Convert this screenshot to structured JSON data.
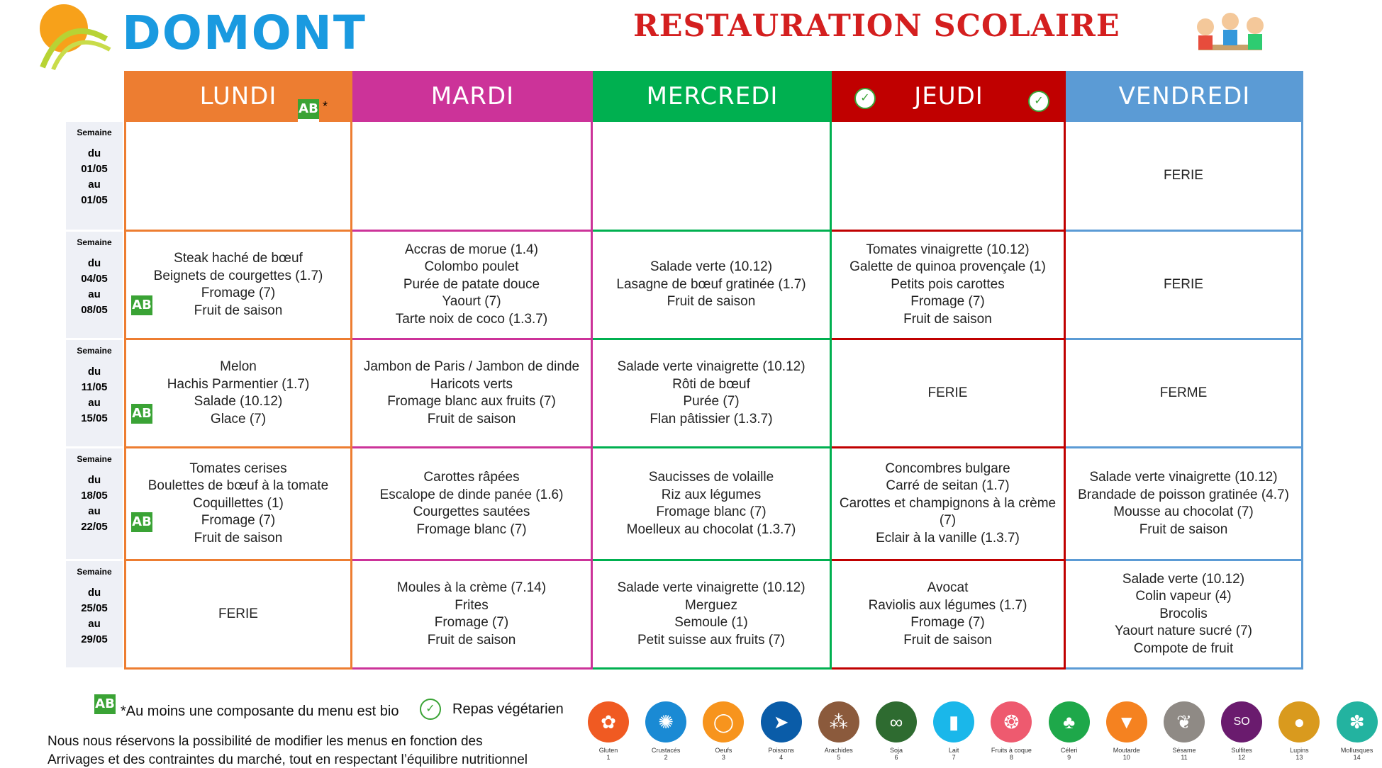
{
  "header": {
    "logo_text": "DOMONT",
    "title": "RESTAURATION SCOLAIRE"
  },
  "days": [
    {
      "label": "LUNDI",
      "color": "#ed7d31"
    },
    {
      "label": "MARDI",
      "color": "#cc3399"
    },
    {
      "label": "MERCREDI",
      "color": "#00b050"
    },
    {
      "label": "JEUDI",
      "color": "#c00000"
    },
    {
      "label": "VENDREDI",
      "color": "#5b9bd5"
    }
  ],
  "weeks": [
    {
      "semaine": "Semaine",
      "du": "du",
      "from": "01/05",
      "au": "au",
      "to": "01/05",
      "menus": [
        [],
        [],
        [],
        [],
        [
          "FERIE"
        ]
      ]
    },
    {
      "semaine": "Semaine",
      "du": "du",
      "from": "04/05",
      "au": "au",
      "to": "08/05",
      "menus": [
        [
          "Steak haché de bœuf",
          "Beignets de courgettes (1.7)",
          "Fromage (7)",
          "Fruit de saison"
        ],
        [
          "Accras de morue (1.4)",
          "Colombo poulet",
          "Purée de patate douce",
          "Yaourt (7)",
          "Tarte noix de coco (1.3.7)"
        ],
        [
          "Salade verte (10.12)",
          "Lasagne de bœuf gratinée (1.7)",
          "Fruit de saison"
        ],
        [
          "Tomates vinaigrette (10.12)",
          "Galette de quinoa provençale (1)",
          "Petits pois carottes",
          "Fromage (7)",
          "Fruit de saison"
        ],
        [
          "FERIE"
        ]
      ]
    },
    {
      "semaine": "Semaine",
      "du": "du",
      "from": "11/05",
      "au": "au",
      "to": "15/05",
      "menus": [
        [
          "Melon",
          "Hachis Parmentier (1.7)",
          "Salade (10.12)",
          "Glace (7)"
        ],
        [
          "Jambon de Paris / Jambon de dinde",
          "Haricots verts",
          "Fromage blanc aux fruits (7)",
          "Fruit de saison"
        ],
        [
          "Salade verte vinaigrette (10.12)",
          "Rôti de bœuf",
          "Purée (7)",
          "Flan pâtissier (1.3.7)"
        ],
        [
          "FERIE"
        ],
        [
          "FERME"
        ]
      ]
    },
    {
      "semaine": "Semaine",
      "du": "du",
      "from": "18/05",
      "au": "au",
      "to": "22/05",
      "menus": [
        [
          "Tomates cerises",
          "Boulettes de bœuf à la tomate",
          "Coquillettes (1)",
          "Fromage (7)",
          "Fruit de saison"
        ],
        [
          "Carottes râpées",
          "Escalope de dinde panée (1.6)",
          "Courgettes sautées",
          "Fromage blanc (7)"
        ],
        [
          "Saucisses de volaille",
          "Riz aux légumes",
          "Fromage blanc (7)",
          "Moelleux au chocolat (1.3.7)"
        ],
        [
          "Concombres bulgare",
          "Carré de seitan (1.7)",
          "Carottes et champignons à la crème (7)",
          "Eclair à la vanille (1.3.7)"
        ],
        [
          "Salade verte vinaigrette (10.12)",
          "Brandade de poisson gratinée (4.7)",
          "Mousse au chocolat (7)",
          "Fruit de saison"
        ]
      ]
    },
    {
      "semaine": "Semaine",
      "du": "du",
      "from": "25/05",
      "au": "au",
      "to": "29/05",
      "menus": [
        [
          "FERIE"
        ],
        [
          "Moules à la crème (7.14)",
          "Frites",
          "Fromage (7)",
          "Fruit de saison"
        ],
        [
          "Salade verte vinaigrette (10.12)",
          "Merguez",
          "Semoule (1)",
          "Petit suisse aux fruits (7)"
        ],
        [
          "Avocat",
          "Raviolis aux légumes (1.7)",
          "Fromage (7)",
          "Fruit de saison"
        ],
        [
          "Salade verte (10.12)",
          "Colin vapeur (4)",
          "Brocolis",
          "Yaourt nature sucré (7)",
          "Compote de fruit"
        ]
      ]
    }
  ],
  "legend": {
    "bio": "*Au moins une composante du menu est bio",
    "veg": "Repas végétarien",
    "ab_logo": "AB",
    "note1": "Nous nous réservons la possibilité de modifier les menus en fonction des",
    "note2": "Arrivages et des contraintes du marché, tout en respectant l’équilibre nutritionnel"
  },
  "allergens": [
    {
      "name": "Gluten",
      "num": "1",
      "color": "#f05a22",
      "icon": "wheat"
    },
    {
      "name": "Crustacés",
      "num": "2",
      "color": "#1a8ad4",
      "icon": "crab"
    },
    {
      "name": "Oeufs",
      "num": "3",
      "color": "#f7941d",
      "icon": "egg"
    },
    {
      "name": "Poissons",
      "num": "4",
      "color": "#0a5ca8",
      "icon": "fish"
    },
    {
      "name": "Arachides",
      "num": "5",
      "color": "#8b5a3c",
      "icon": "peanut"
    },
    {
      "name": "Soja",
      "num": "6",
      "color": "#2e6b30",
      "icon": "soy"
    },
    {
      "name": "Lait",
      "num": "7",
      "color": "#1ab7ea",
      "icon": "milk"
    },
    {
      "name": "Fruits à coque",
      "num": "8",
      "color": "#ee5a6f",
      "icon": "nut"
    },
    {
      "name": "Céleri",
      "num": "9",
      "color": "#1ea84a",
      "icon": "celery"
    },
    {
      "name": "Moutarde",
      "num": "10",
      "color": "#f58220",
      "icon": "mustard"
    },
    {
      "name": "Sésame",
      "num": "11",
      "color": "#8f8a85",
      "icon": "sesame"
    },
    {
      "name": "Sulfites",
      "num": "12",
      "color": "#6a1b6e",
      "icon": "sulfite"
    },
    {
      "name": "Lupins",
      "num": "13",
      "color": "#d99a1e",
      "icon": "lupin"
    },
    {
      "name": "Mollusques",
      "num": "14",
      "color": "#23b3a0",
      "icon": "shell"
    }
  ]
}
